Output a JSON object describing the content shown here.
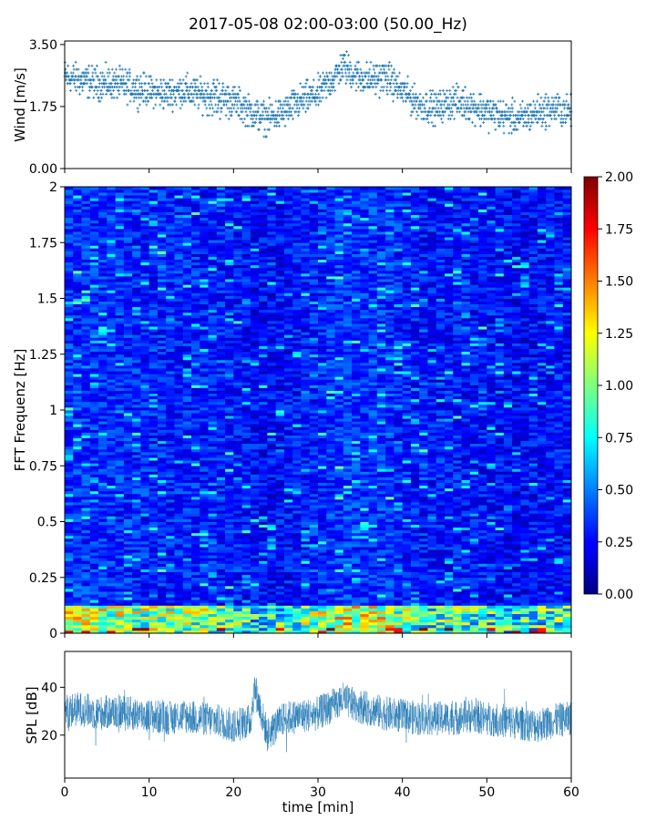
{
  "figure": {
    "title": "2017-05-08 02:00-03:00 (50.00_Hz)"
  },
  "chart_data": [
    {
      "type": "scatter",
      "panel": "wind",
      "ylabel": "Wind [m/s]",
      "xlabel": "",
      "xlim": [
        0,
        60
      ],
      "ylim": [
        0,
        3.6
      ],
      "yticks": [
        0,
        1.75,
        3.5
      ],
      "ytick_labels": [
        "0.00",
        "1.75",
        "3.50"
      ],
      "marker": "plus",
      "series": [
        {
          "color": "#1f77b4",
          "x": [
            0,
            2,
            4,
            6,
            8,
            10,
            12,
            14,
            16,
            18,
            20,
            22,
            24,
            26,
            28,
            30,
            32,
            33,
            34,
            36,
            38,
            40,
            42,
            44,
            46,
            48,
            50,
            52,
            54,
            56,
            58,
            60
          ],
          "y": [
            2.6,
            2.5,
            2.4,
            2.4,
            2.3,
            2.2,
            2.1,
            2.2,
            2.1,
            2.0,
            1.9,
            1.6,
            1.4,
            1.6,
            1.9,
            2.1,
            2.6,
            2.9,
            2.7,
            2.5,
            2.6,
            2.2,
            1.8,
            1.7,
            1.9,
            1.8,
            1.6,
            1.5,
            1.4,
            1.6,
            1.7,
            1.6
          ],
          "spread": [
            0.4,
            0.4,
            0.4,
            0.4,
            0.4,
            0.4,
            0.4,
            0.4,
            0.4,
            0.5,
            0.4,
            0.4,
            0.4,
            0.4,
            0.4,
            0.4,
            0.4,
            0.4,
            0.4,
            0.4,
            0.4,
            0.4,
            0.4,
            0.4,
            0.4,
            0.4,
            0.4,
            0.4,
            0.4,
            0.4,
            0.4,
            0.4
          ]
        }
      ]
    },
    {
      "type": "heatmap",
      "panel": "spectrogram",
      "ylabel": "FFT Frequenz [Hz]",
      "xlabel": "",
      "xlim": [
        0,
        60
      ],
      "ylim": [
        0,
        2
      ],
      "yticks": [
        0,
        0.25,
        0.5,
        0.75,
        1,
        1.25,
        1.5,
        1.75,
        2
      ],
      "ytick_labels": [
        "0",
        "0.25",
        "0.5",
        "0.75",
        "1",
        "1.25",
        "1.5",
        "1.75",
        "2"
      ],
      "colormap": "jet",
      "clim": [
        0,
        2
      ],
      "colorbar_ticks": [
        "0.00",
        "0.25",
        "0.50",
        "0.75",
        "1.00",
        "1.25",
        "1.50",
        "1.75",
        "2.00"
      ],
      "typical_level": 0.3,
      "low_freq_band_hz": [
        0,
        0.12
      ],
      "low_freq_level": 1.0
    },
    {
      "type": "line",
      "panel": "spl",
      "ylabel": "SPL [dB]",
      "xlabel": "time [min]",
      "xlim": [
        0,
        60
      ],
      "ylim": [
        2,
        55
      ],
      "yticks": [
        20,
        40
      ],
      "ytick_labels": [
        "20",
        "40"
      ],
      "xticks": [
        0,
        10,
        20,
        30,
        40,
        50,
        60
      ],
      "xtick_labels": [
        "0",
        "10",
        "20",
        "30",
        "40",
        "50",
        "60"
      ],
      "series": [
        {
          "color": "#1f77b4",
          "x": [
            0,
            2,
            4,
            6,
            8,
            10,
            12,
            14,
            16,
            18,
            20,
            22,
            22.5,
            24,
            26,
            28,
            30,
            32,
            33,
            34,
            36,
            38,
            40,
            42,
            44,
            46,
            48,
            50,
            52,
            54,
            56,
            58,
            60
          ],
          "y": [
            30,
            31,
            29,
            30,
            29,
            28,
            27,
            28,
            27,
            26,
            24,
            26,
            40,
            20,
            27,
            28,
            29,
            33,
            35,
            33,
            31,
            29,
            28,
            27,
            27,
            27,
            28,
            27,
            26,
            25,
            24,
            26,
            27
          ],
          "band": 9
        }
      ]
    }
  ]
}
